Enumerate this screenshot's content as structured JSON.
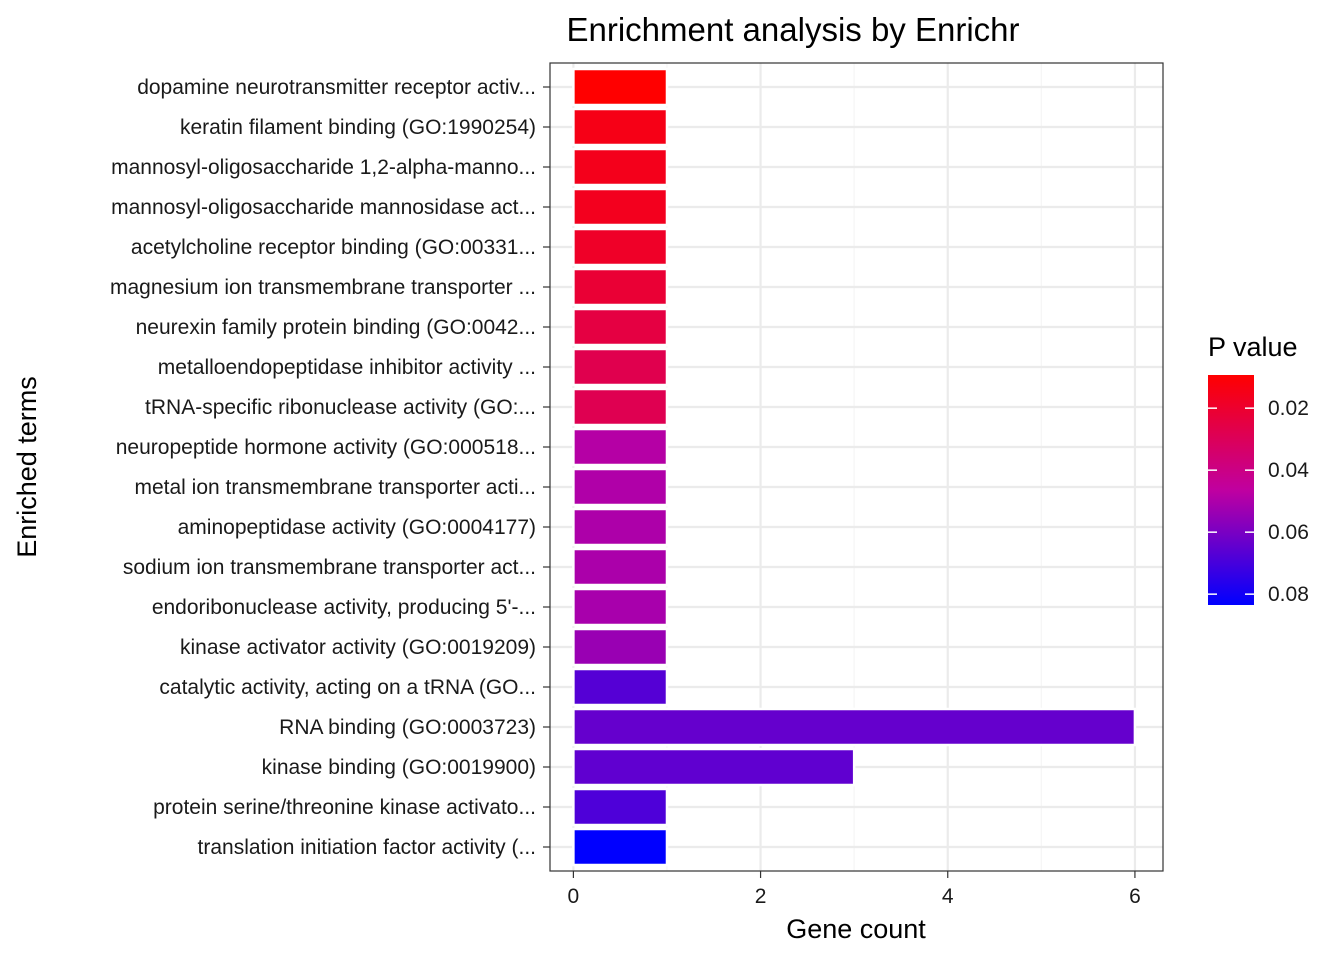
{
  "chart_data": {
    "type": "bar",
    "orientation": "horizontal",
    "title": "Enrichment analysis by Enrichr",
    "xlabel": "Gene count",
    "ylabel": "Enriched terms",
    "xlim": [
      -0.25,
      6.3
    ],
    "x_ticks": [
      0,
      2,
      4,
      6
    ],
    "x_tick_labels": [
      "0",
      "2",
      "4",
      "6"
    ],
    "grid": true,
    "categories": [
      "dopamine neurotransmitter receptor activ...",
      "keratin filament binding (GO:1990254)",
      "mannosyl-oligosaccharide 1,2-alpha-manno...",
      "mannosyl-oligosaccharide mannosidase act...",
      "acetylcholine receptor binding (GO:00331...",
      "magnesium ion transmembrane transporter ...",
      "neurexin family protein binding (GO:0042...",
      "metalloendopeptidase inhibitor activity ...",
      "tRNA-specific ribonuclease activity (GO:...",
      "neuropeptide hormone activity (GO:000518...",
      "metal ion transmembrane transporter acti...",
      "aminopeptidase activity (GO:0004177)",
      "sodium ion transmembrane transporter act...",
      "endoribonuclease activity, producing 5'-...",
      "kinase activator activity (GO:0019209)",
      "catalytic activity, acting on a tRNA (GO...",
      "RNA binding (GO:0003723)",
      "kinase binding (GO:0019900)",
      "protein serine/threonine kinase activato...",
      "translation initiation factor activity (..."
    ],
    "values": [
      1,
      1,
      1,
      1,
      1,
      1,
      1,
      1,
      1,
      1,
      1,
      1,
      1,
      1,
      1,
      1,
      6,
      3,
      1,
      1
    ],
    "p_values": [
      0.0093,
      0.0145,
      0.0155,
      0.0162,
      0.0185,
      0.0215,
      0.0245,
      0.0275,
      0.028,
      0.0485,
      0.0495,
      0.05,
      0.0505,
      0.051,
      0.054,
      0.067,
      0.064,
      0.065,
      0.0685,
      0.0835
    ],
    "legend": {
      "title": "P value",
      "placement": "right",
      "range": [
        0.0093,
        0.0835
      ],
      "ticks": [
        0.02,
        0.04,
        0.06,
        0.08
      ],
      "tick_labels": [
        "0.02",
        "0.04",
        "0.06",
        "0.08"
      ],
      "colors": {
        "low": "#FF0000",
        "high": "#0000FF"
      }
    },
    "colors": {
      "bar_outline": "#ffffff",
      "grid_major": "#EBEBEB",
      "grid_minor": "#F5F5F5",
      "panel_border": "#333333",
      "axis_text": "#000000"
    }
  }
}
